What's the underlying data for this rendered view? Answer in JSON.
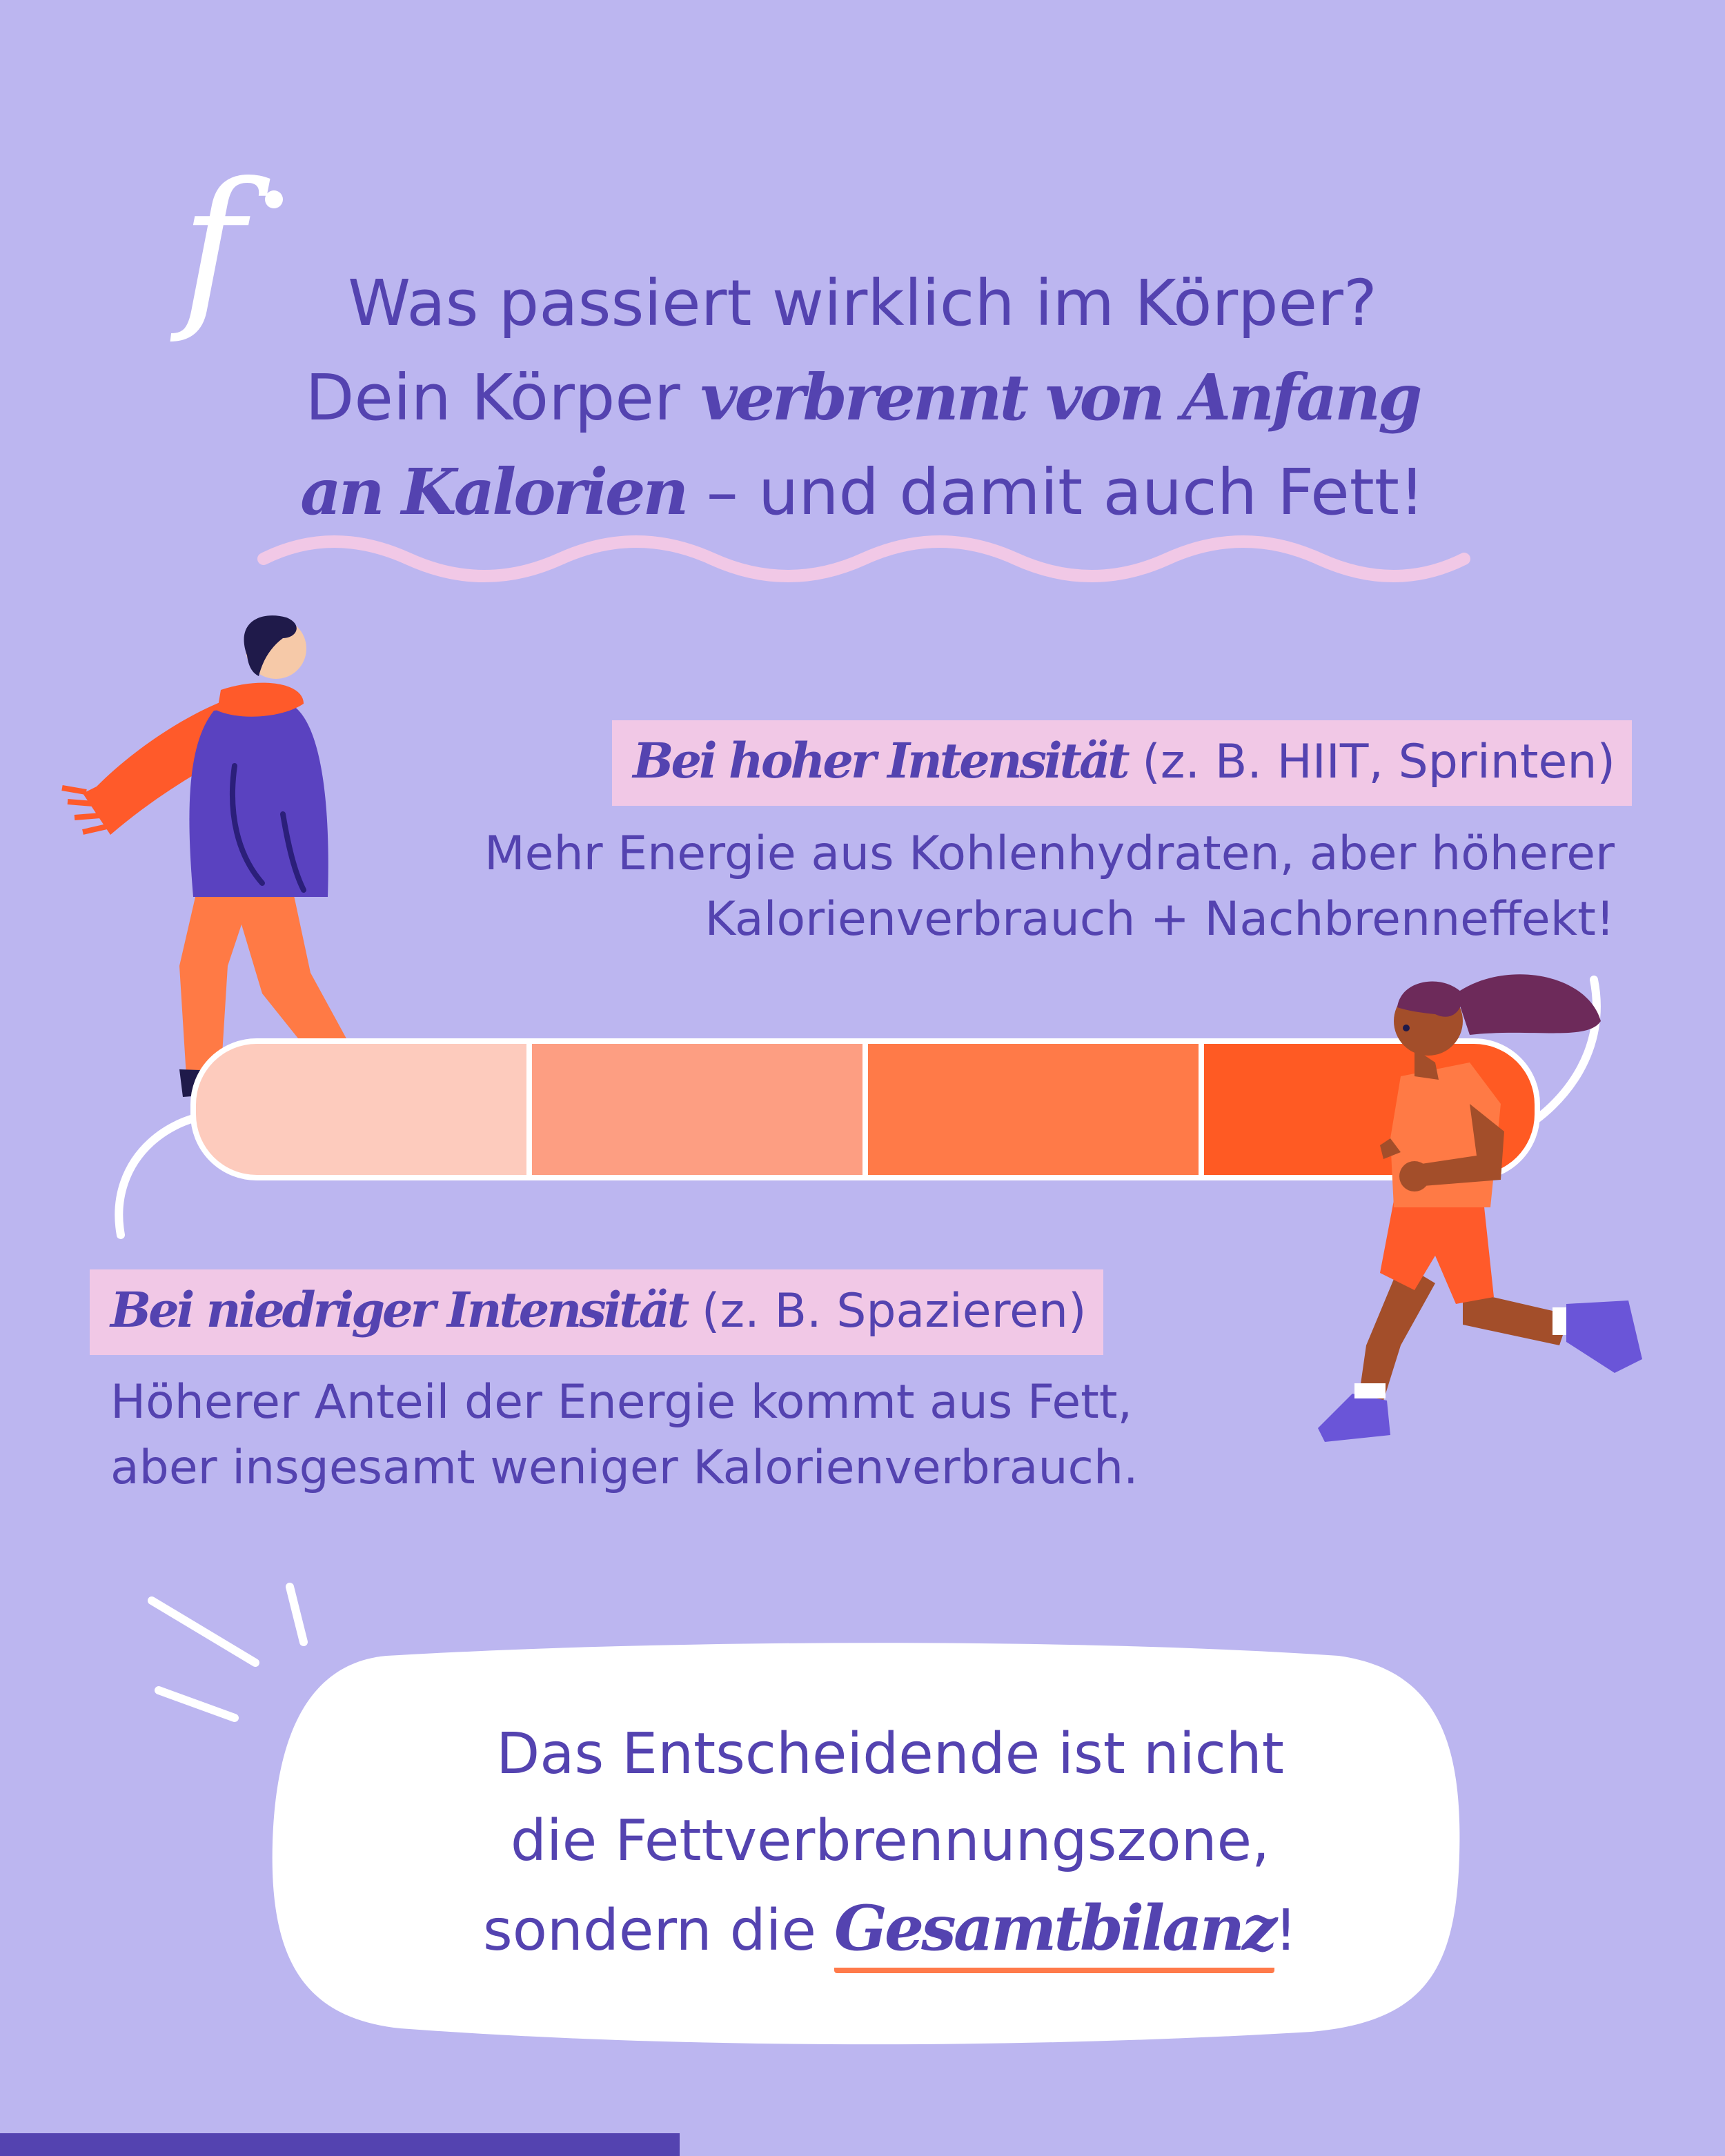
{
  "logo": {
    "glyph": "f"
  },
  "headline": {
    "line1": "Was passiert wirklich im Körper?",
    "line2_plain": "Dein Körper ",
    "line2_emph": "verbrennt von Anfang",
    "line3_emph": "an Kalorien",
    "line3_plain": " – und damit auch Fett!"
  },
  "high_intensity": {
    "title": "Bei hoher Intensität",
    "example": " (z. B. HIIT, Sprinten)",
    "line1": "Mehr Energie aus Kohlenhydraten, aber höherer",
    "line2": "Kalorienverbrauch + Nachbrenneffekt!"
  },
  "low_intensity": {
    "title": "Bei niedriger Intensität",
    "example": " (z. B. Spazieren)",
    "line1": "Höherer Anteil der Energie kommt aus Fett,",
    "line2": "aber insgesamt weniger Kalorienverbrauch."
  },
  "intensity_bar": {
    "segments": 4,
    "colors": [
      "#fdcbbd",
      "#fd9e82",
      "#ff7a48",
      "#ff5a23"
    ]
  },
  "conclusion": {
    "line1": "Das Entscheidende ist nicht",
    "line2": "die Fettverbrennungszone,",
    "line3_plain": "sondern die ",
    "line3_emph": "Gesamtbilanz",
    "line3_end": "!"
  },
  "colors": {
    "background": "#bcb6f0",
    "text": "#5443b0",
    "highlight": "#f1c8e6",
    "underline_wave": "#f1c8e6",
    "accent_underline": "#ff7a4a"
  }
}
